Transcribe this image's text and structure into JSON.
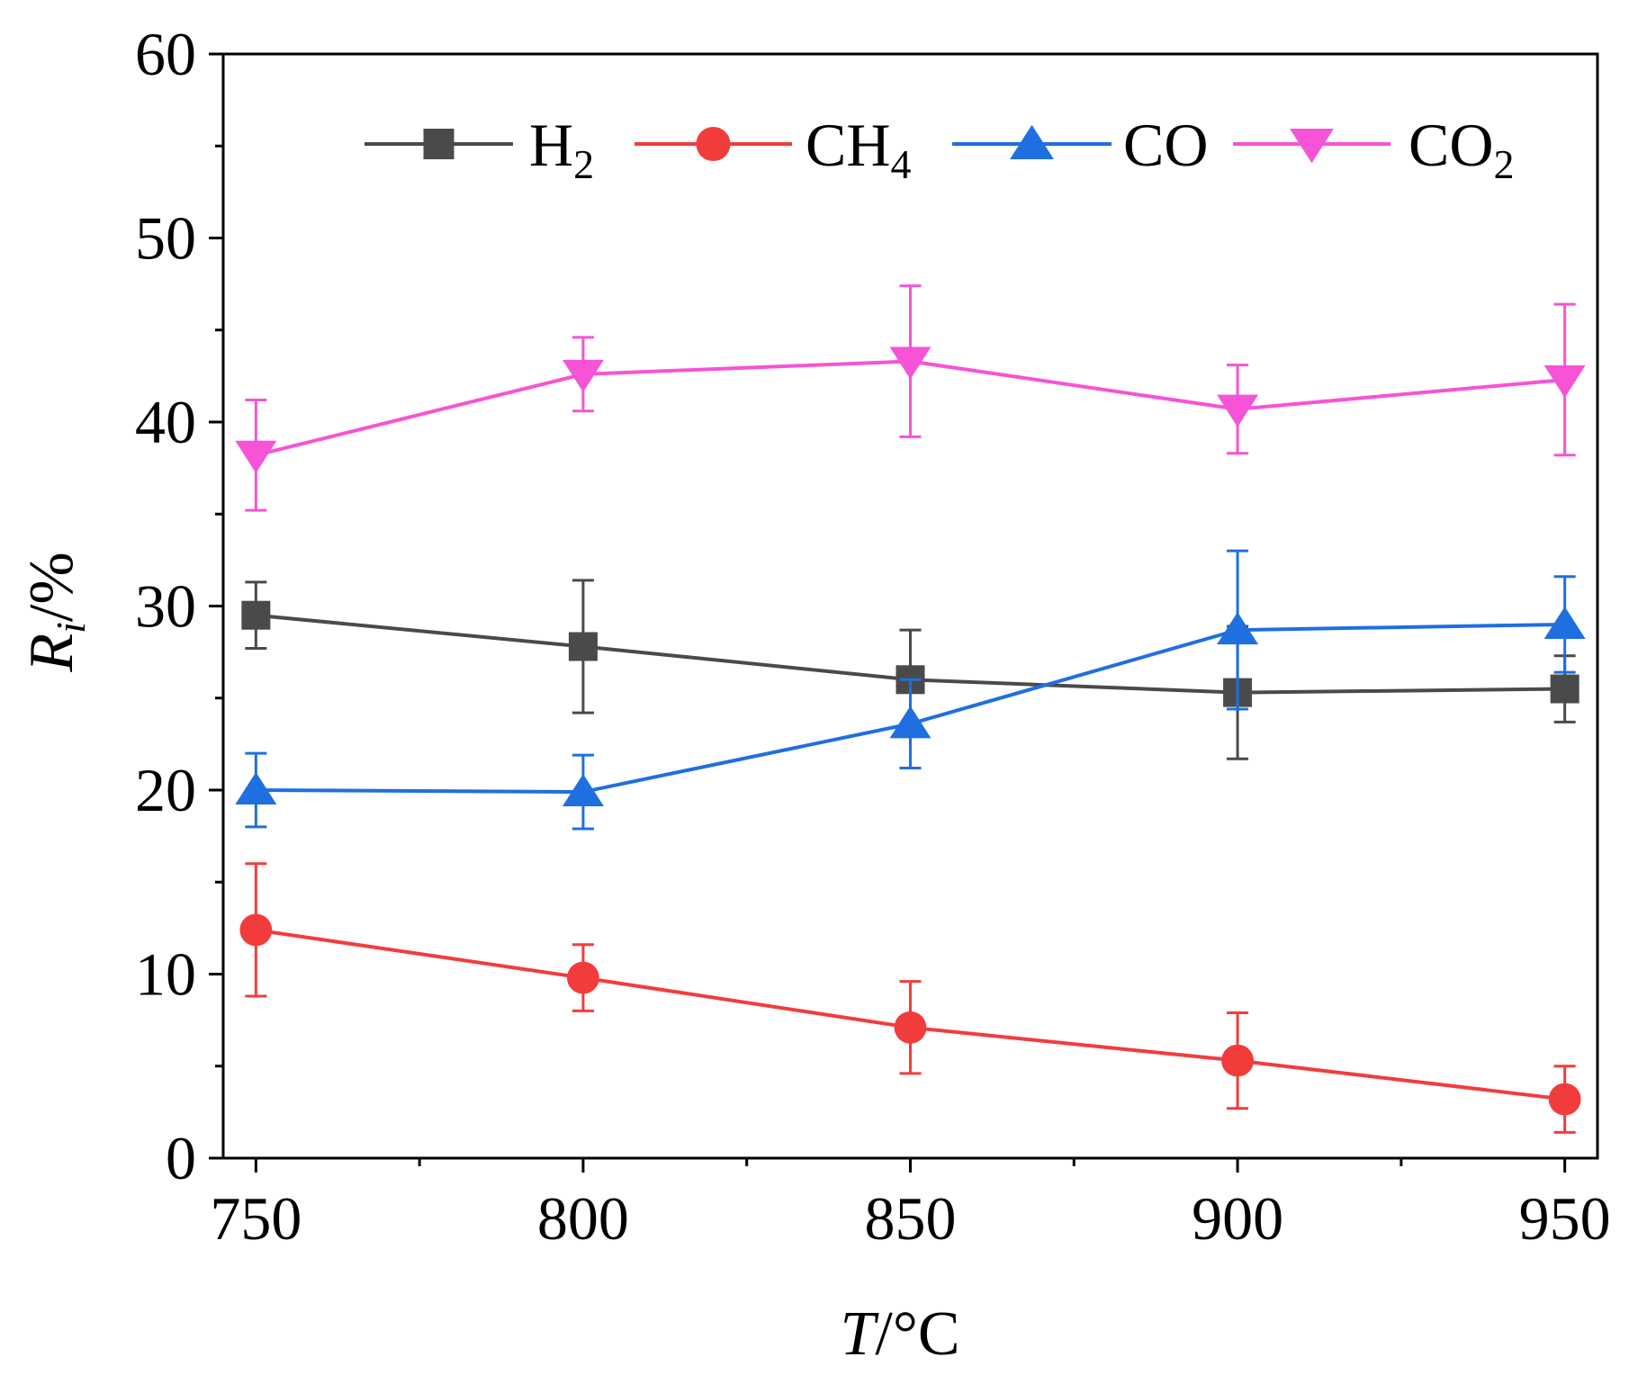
{
  "chart_data": {
    "type": "line",
    "title": "",
    "xlabel": {
      "italic": "T",
      "rest": "/°C"
    },
    "ylabel": {
      "italic": "R",
      "sub": "i",
      "rest": "/%"
    },
    "x": [
      750,
      800,
      850,
      900,
      950
    ],
    "xlim": [
      745,
      955
    ],
    "ylim": [
      0,
      60
    ],
    "xticks": [
      750,
      800,
      850,
      900,
      950
    ],
    "yticks": [
      0,
      10,
      20,
      30,
      40,
      50,
      60
    ],
    "grid": false,
    "legend_position": "top",
    "series": [
      {
        "name": "H",
        "sub": "2",
        "color": "#4a4a4a",
        "marker": "square",
        "values": [
          29.5,
          27.8,
          26.0,
          25.3,
          25.5
        ],
        "errors": [
          1.8,
          3.6,
          2.7,
          3.6,
          1.8
        ]
      },
      {
        "name": "CH",
        "sub": "4",
        "color": "#f23c3c",
        "marker": "circle",
        "values": [
          12.4,
          9.8,
          7.1,
          5.3,
          3.2
        ],
        "errors": [
          3.6,
          1.8,
          2.5,
          2.6,
          1.8
        ]
      },
      {
        "name": "CO",
        "sub": "",
        "color": "#1f6fe0",
        "marker": "triangle-up",
        "values": [
          20.0,
          19.9,
          23.6,
          28.7,
          29.0
        ],
        "errors": [
          2.0,
          2.0,
          2.4,
          4.3,
          2.6
        ]
      },
      {
        "name": "CO",
        "sub": "2",
        "color": "#f653d6",
        "marker": "triangle-down",
        "values": [
          38.2,
          42.6,
          43.3,
          40.7,
          42.3
        ],
        "errors": [
          3.0,
          2.0,
          4.1,
          2.4,
          4.1
        ]
      }
    ]
  }
}
